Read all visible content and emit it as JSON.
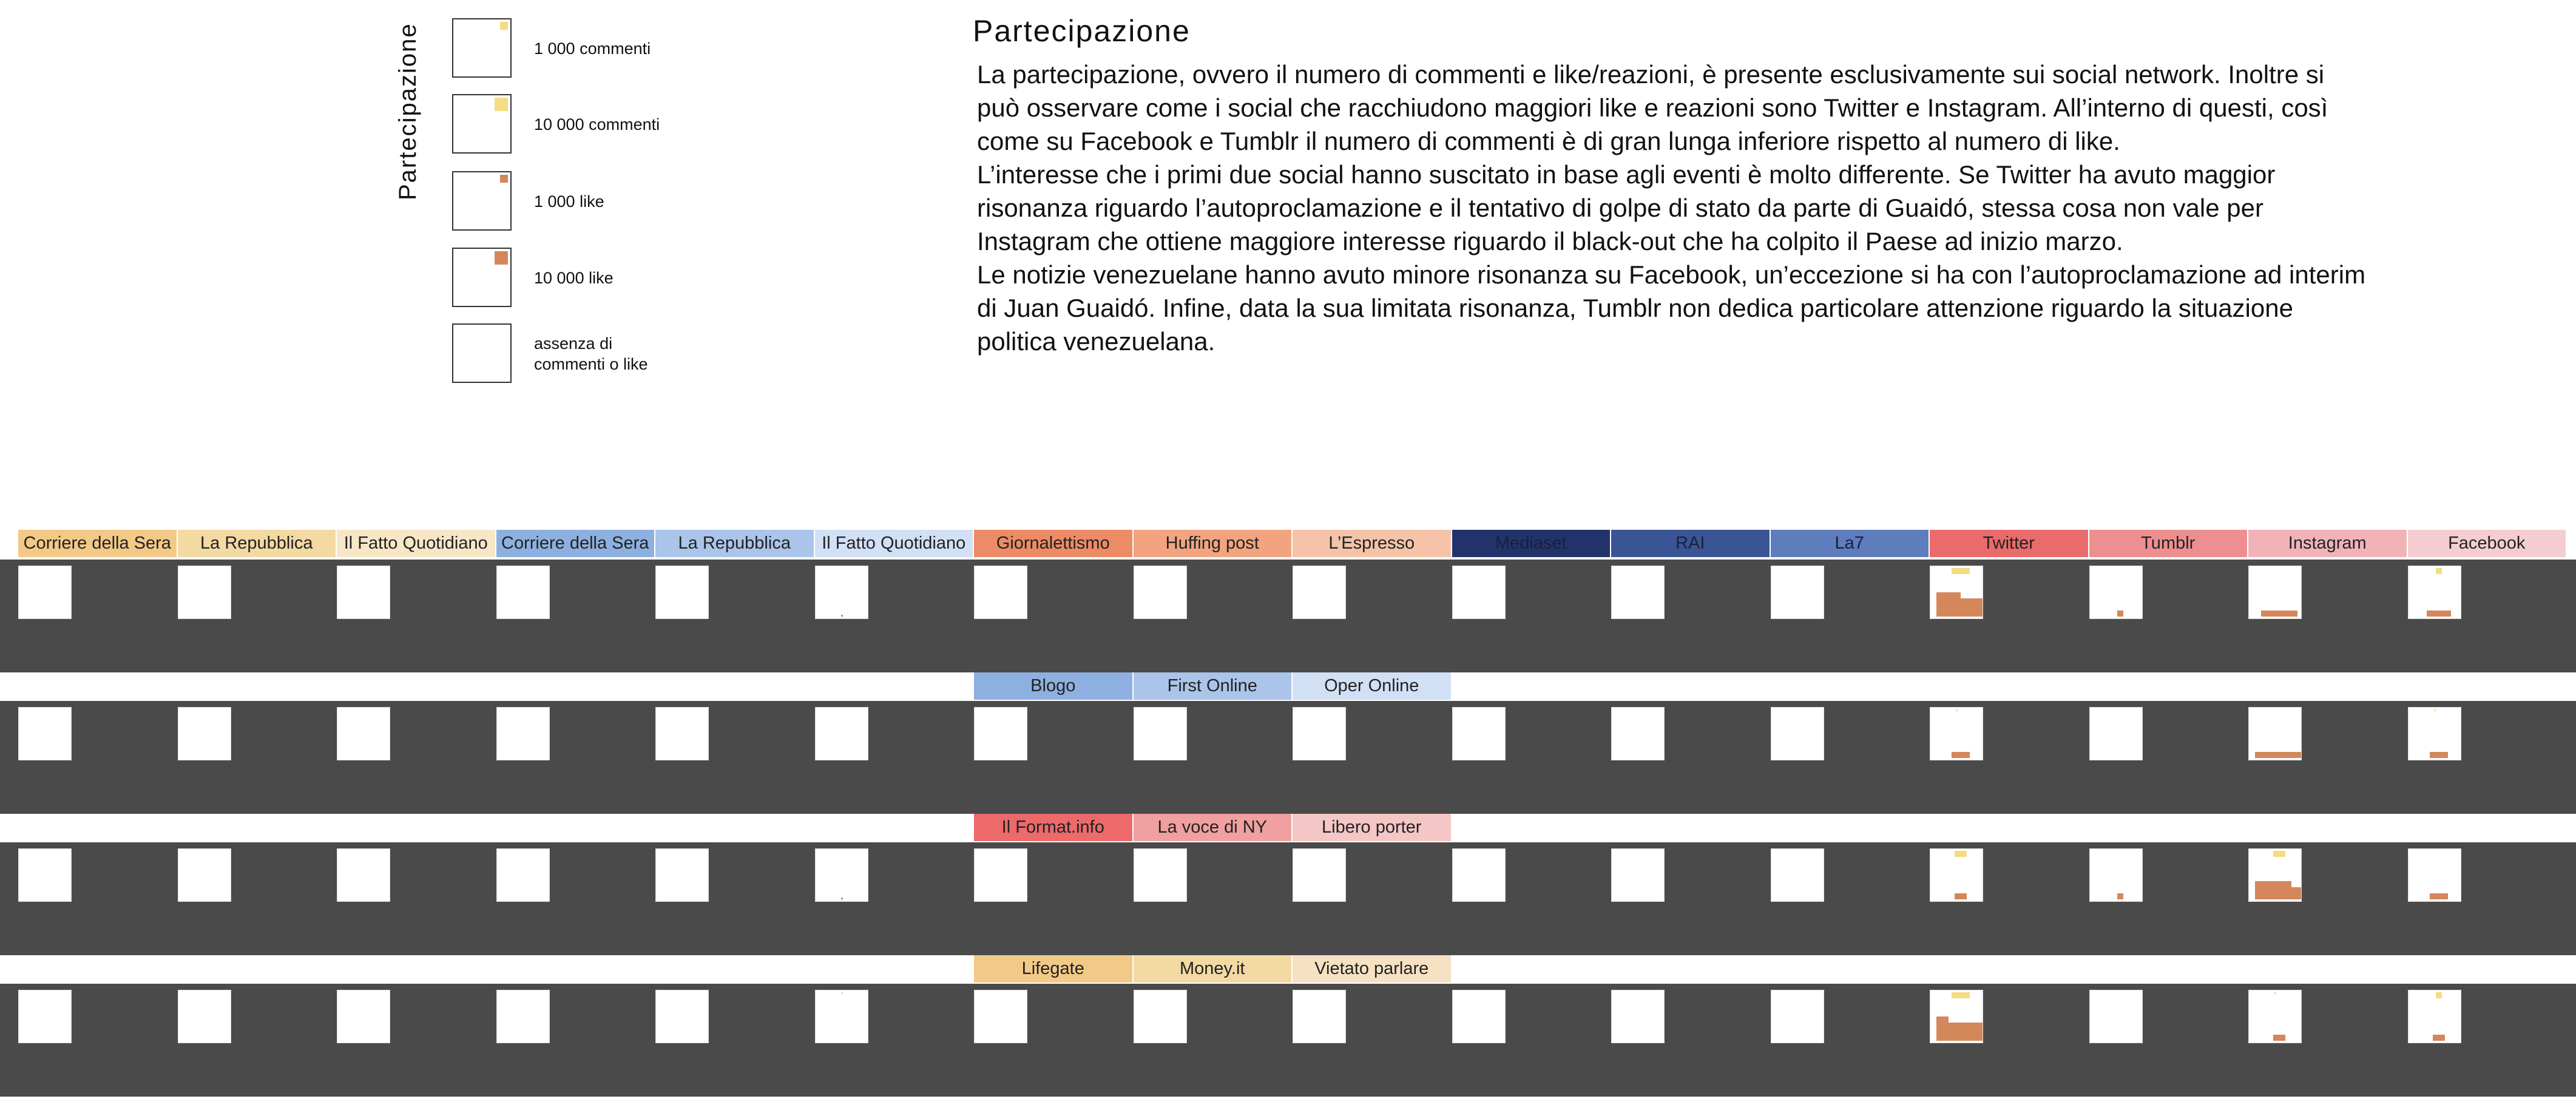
{
  "legend": {
    "title": "Partecipazione",
    "items": [
      {
        "label": "1 000 commenti",
        "kind": "comment",
        "count": 1000
      },
      {
        "label": "10 000 commenti",
        "kind": "comment",
        "count": 10000
      },
      {
        "label": "1 000 like",
        "kind": "like",
        "count": 1000
      },
      {
        "label": "10 000 like",
        "kind": "like",
        "count": 10000
      },
      {
        "label": "assenza di\ncommenti o like",
        "kind": "none",
        "count": 0
      }
    ],
    "colors": {
      "comment": "#f4dc82",
      "like": "#d4875a"
    }
  },
  "article": {
    "title": "Partecipazione",
    "paragraphs": [
      "La partecipazione, ovvero il numero di commenti e like/reazioni, è presente esclusivamente sui social network. Inoltre si può osservare come i social che racchiudono maggiori like e reazioni sono Twitter e Instagram. All’interno di questi, così come su Facebook e Tumblr il numero di commenti è di gran lunga inferiore rispetto al numero di like.",
      "L’interesse che i primi due social hanno suscitato in base agli eventi è molto differente. Se Twitter ha avuto maggior risonanza riguardo l’autoproclamazione e il tentativo di golpe di stato da parte di Guaidó, stessa cosa non vale per Instagram che ottiene maggiore interesse riguardo il black-out che ha colpito il Paese ad inizio marzo.",
      "Le notizie venezuelane hanno avuto minore risonanza su Facebook, un’eccezione si ha con l’autoproclamazione ad interim di Juan Guaidó. Infine, data la sua limitata risonanza, Tumblr non dedica particolare attenzione riguardo la situazione politica venezuelana."
    ]
  },
  "sources_header": [
    {
      "label": "Corriere della Sera",
      "color": "#f2c986"
    },
    {
      "label": "La Repubblica",
      "color": "#f3d9a2"
    },
    {
      "label": "Il Fatto Quotidiano",
      "color": "#f7e7c6"
    },
    {
      "label": "Corriere della Sera",
      "color": "#8eb0e0"
    },
    {
      "label": "La Repubblica",
      "color": "#aac4ea"
    },
    {
      "label": "Il Fatto Quotidiano",
      "color": "#d2e0f6"
    },
    {
      "label": "Giornalettismo",
      "color": "#ec8b65"
    },
    {
      "label": "Huffing post",
      "color": "#f1a47f"
    },
    {
      "label": "L’Espresso",
      "color": "#f5c3a8"
    },
    {
      "label": "Mediaset",
      "color": "#22336b",
      "dark": true
    },
    {
      "label": "RAI",
      "color": "#3a5596",
      "dark": true
    },
    {
      "label": "La7",
      "color": "#5e7dbd",
      "dark": true
    },
    {
      "label": "Twitter",
      "color": "#ea6b6b"
    },
    {
      "label": "Tumblr",
      "color": "#ee8f8f"
    },
    {
      "label": "Instagram",
      "color": "#f1b3b8"
    },
    {
      "label": "Facebook",
      "color": "#f4cdd0"
    }
  ],
  "sub_groups": [
    [
      {
        "label": "Blogo",
        "color": "#8eb0e0"
      },
      {
        "label": "First Online",
        "color": "#aac4ea"
      },
      {
        "label": "Oper Online",
        "color": "#d2e0f6"
      }
    ],
    [
      {
        "label": "Il Format.info",
        "color": "#ec6a6a"
      },
      {
        "label": "La voce di NY",
        "color": "#f0a0a0"
      },
      {
        "label": "Libero porter",
        "color": "#f4c6c6"
      }
    ],
    [
      {
        "label": "Lifegate",
        "color": "#f2c986"
      },
      {
        "label": "Money.it",
        "color": "#f3d9a2"
      },
      {
        "label": "Vietato parlare",
        "color": "#f7e1c3"
      }
    ]
  ],
  "rows": [
    {
      "cells": [
        null,
        null,
        null,
        null,
        null,
        {
          "c": 0,
          "l": 0.05
        },
        null,
        null,
        null,
        null,
        null,
        null,
        {
          "c": 3,
          "l": 28
        },
        {
          "c": 0,
          "l": 1
        },
        {
          "c": 0,
          "l": 6
        },
        {
          "c": 1,
          "l": 4
        }
      ]
    },
    {
      "cells": [
        null,
        null,
        null,
        null,
        null,
        null,
        null,
        null,
        null,
        null,
        null,
        null,
        {
          "c": 0.3,
          "l": 3
        },
        null,
        {
          "c": 0,
          "l": 8
        },
        {
          "c": 0.3,
          "l": 3
        }
      ]
    },
    {
      "cells": [
        null,
        null,
        null,
        null,
        null,
        {
          "c": 0,
          "l": 0.05
        },
        null,
        null,
        null,
        null,
        null,
        null,
        {
          "c": 2,
          "l": 2
        },
        {
          "c": 0,
          "l": 1
        },
        {
          "c": 2,
          "l": 22
        },
        {
          "c": 0,
          "l": 3
        }
      ]
    },
    {
      "cells": [
        null,
        null,
        null,
        null,
        null,
        {
          "c": 0.1,
          "l": 0
        },
        null,
        null,
        null,
        null,
        null,
        null,
        {
          "c": 3,
          "l": 26
        },
        null,
        {
          "c": 0.3,
          "l": 2
        },
        {
          "c": 1,
          "l": 2
        }
      ]
    }
  ]
}
